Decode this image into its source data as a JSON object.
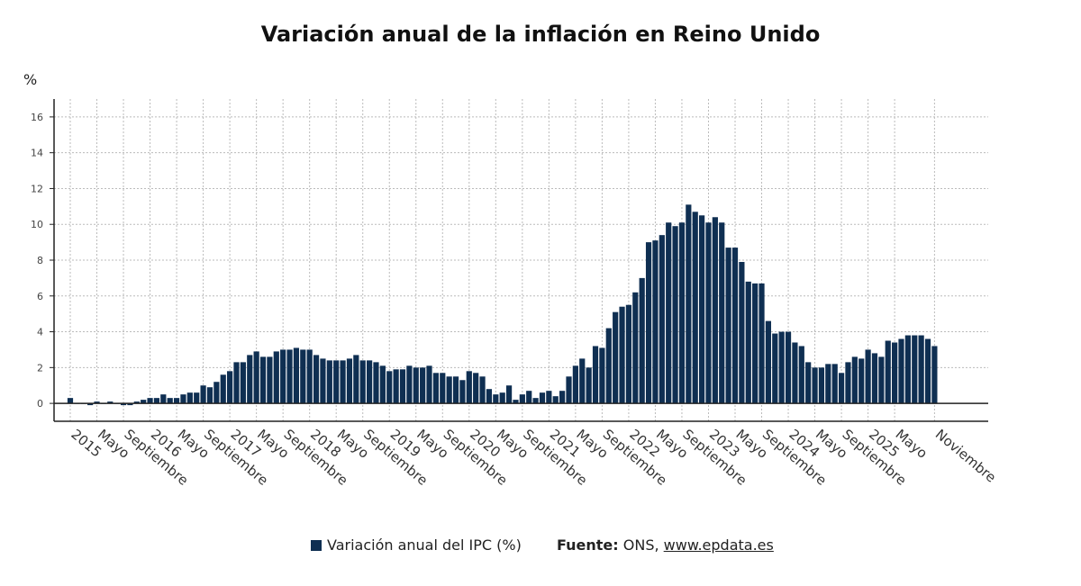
{
  "chart_data": {
    "type": "bar",
    "title": "Variación anual de la inflación en Reino Unido",
    "ylabel": "%",
    "ylim": [
      -1,
      17
    ],
    "yticks": [
      0,
      2,
      4,
      6,
      8,
      10,
      12,
      14,
      16
    ],
    "grid": true,
    "bar_color": "#0f2f52",
    "x_tick_labels": [
      "2015",
      "Mayo",
      "Septiembre",
      "2016",
      "Mayo",
      "Septiembre",
      "2017",
      "Mayo",
      "Septiembre",
      "2018",
      "Mayo",
      "Septiembre",
      "2019",
      "Mayo",
      "Septiembre",
      "2020",
      "Mayo",
      "Septiembre",
      "2021",
      "Mayo",
      "Septiembre",
      "2022",
      "Mayo",
      "Septiembre",
      "2023",
      "Mayo",
      "Septiembre",
      "2024",
      "Mayo",
      "Septiembre",
      "2025",
      "Mayo",
      "Noviembre"
    ],
    "series": [
      {
        "name": "Variación anual del IPC (%)",
        "start": "2015-01",
        "values": [
          0.3,
          0.0,
          0.0,
          -0.1,
          0.1,
          0.0,
          0.1,
          0.0,
          -0.1,
          -0.1,
          0.1,
          0.2,
          0.3,
          0.3,
          0.5,
          0.3,
          0.3,
          0.5,
          0.6,
          0.6,
          1.0,
          0.9,
          1.2,
          1.6,
          1.8,
          2.3,
          2.3,
          2.7,
          2.9,
          2.6,
          2.6,
          2.9,
          3.0,
          3.0,
          3.1,
          3.0,
          3.0,
          2.7,
          2.5,
          2.4,
          2.4,
          2.4,
          2.5,
          2.7,
          2.4,
          2.4,
          2.3,
          2.1,
          1.8,
          1.9,
          1.9,
          2.1,
          2.0,
          2.0,
          2.1,
          1.7,
          1.7,
          1.5,
          1.5,
          1.3,
          1.8,
          1.7,
          1.5,
          0.8,
          0.5,
          0.6,
          1.0,
          0.2,
          0.5,
          0.7,
          0.3,
          0.6,
          0.7,
          0.4,
          0.7,
          1.5,
          2.1,
          2.5,
          2.0,
          3.2,
          3.1,
          4.2,
          5.1,
          5.4,
          5.5,
          6.2,
          7.0,
          9.0,
          9.1,
          9.4,
          10.1,
          9.9,
          10.1,
          11.1,
          10.7,
          10.5,
          10.1,
          10.4,
          10.1,
          8.7,
          8.7,
          7.9,
          6.8,
          6.7,
          6.7,
          4.6,
          3.9,
          4.0,
          4.0,
          3.4,
          3.2,
          2.3,
          2.0,
          2.0,
          2.2,
          2.2,
          1.7,
          2.3,
          2.6,
          2.5,
          3.0,
          2.8,
          2.6,
          3.5,
          3.4,
          3.6,
          3.8,
          3.8,
          3.8,
          3.6,
          3.2
        ]
      }
    ],
    "legend_position": "bottom"
  },
  "source": {
    "label": "Fuente:",
    "text": "ONS,",
    "link": "www.epdata.es"
  }
}
